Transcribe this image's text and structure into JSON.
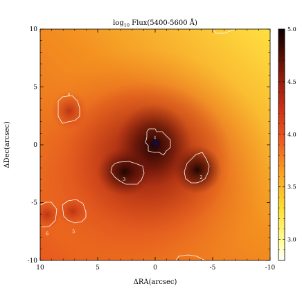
{
  "chart_data": {
    "type": "heatmap",
    "title_main": "log",
    "title_sub": "10",
    "title_rest": " Flux(5400-5600 Å)",
    "xlabel": "ΔRA(arcsec)",
    "ylabel": "ΔDec(arcsec)",
    "xlim": [
      10,
      -10
    ],
    "ylim": [
      -10,
      10
    ],
    "x_ticks": [
      10,
      5,
      0,
      -5,
      -10
    ],
    "x_tick_labels": [
      "10",
      "5",
      "0",
      "-5",
      "-10"
    ],
    "y_ticks": [
      10,
      5,
      0,
      -5,
      -10
    ],
    "y_tick_labels": [
      "10",
      "5",
      "0",
      "-5",
      "-10"
    ],
    "colorbar": {
      "range": [
        2.8,
        5.0
      ],
      "ticks": [
        3.0,
        3.5,
        4.0,
        4.5,
        5.0
      ],
      "tick_labels": [
        "3.0",
        "3.5",
        "4.0",
        "4.5",
        "5.0"
      ],
      "colormap": "gist_heat_r"
    },
    "colors": {
      "low": "#ffffe8",
      "mid": "#e8471e",
      "high": "#1a0200",
      "peak": "#0a1245",
      "contour": "#ffffff"
    },
    "regions": [
      {
        "id": "1",
        "label": "1",
        "ra": 0.0,
        "dec": 0.6
      },
      {
        "id": "2",
        "label": "2",
        "ra": -4.0,
        "dec": -2.8
      },
      {
        "id": "3",
        "label": "3",
        "ra": 2.7,
        "dec": -3.0
      },
      {
        "id": "4",
        "label": "4",
        "ra": 7.5,
        "dec": 4.3
      },
      {
        "id": "5",
        "label": "5",
        "ra": 7.1,
        "dec": -7.5
      },
      {
        "id": "6",
        "label": "6",
        "ra": 9.4,
        "dec": -7.7
      }
    ]
  }
}
